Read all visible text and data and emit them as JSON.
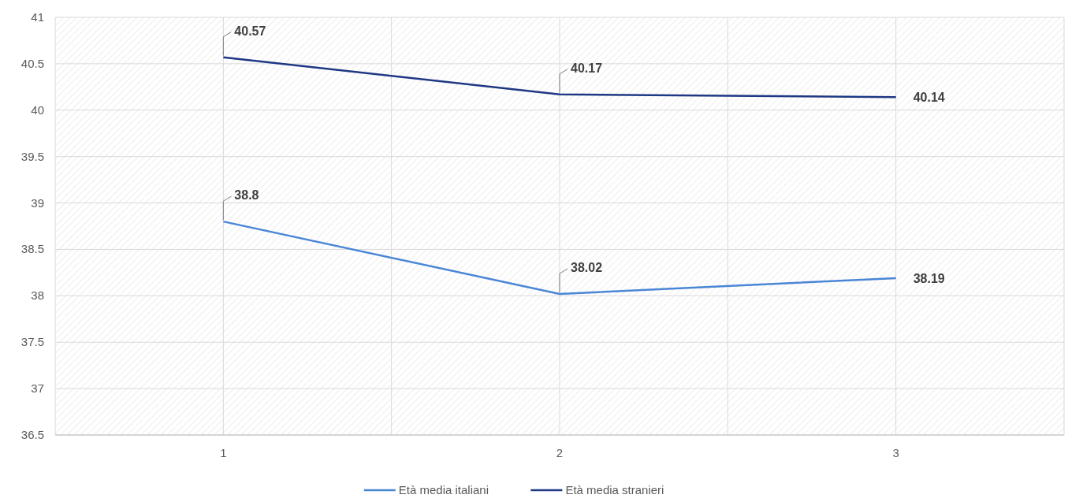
{
  "chart_data": {
    "type": "line",
    "categories": [
      "1",
      "2",
      "3"
    ],
    "series": [
      {
        "name": "Età media italiani",
        "color": "#4a86d6",
        "values": [
          38.8,
          38.02,
          38.19
        ]
      },
      {
        "name": "Età media stranieri",
        "color": "#1f3884",
        "values": [
          40.57,
          40.17,
          40.14
        ]
      }
    ],
    "ylim": [
      36.5,
      41
    ],
    "yticks": [
      36.5,
      37,
      37.5,
      38,
      38.5,
      39,
      39.5,
      40,
      40.5,
      41
    ],
    "grid": true,
    "legend": "bottom",
    "data_labels": true,
    "marker": "none",
    "line_style": "solid"
  }
}
